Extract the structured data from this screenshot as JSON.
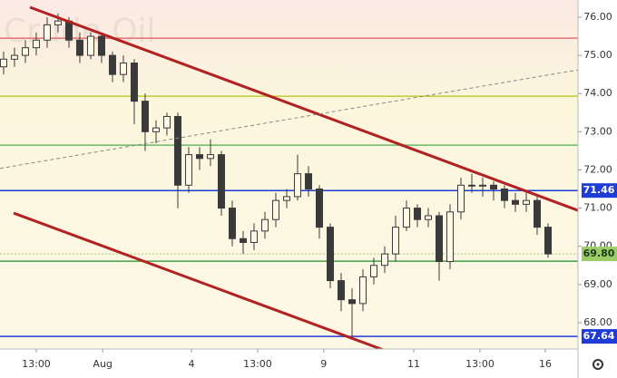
{
  "chart_data": {
    "type": "candlestick",
    "title": "Crude Oil",
    "x": [
      0,
      1,
      2,
      3,
      4,
      5,
      6,
      7,
      8,
      9,
      10,
      11,
      12,
      13,
      14,
      15,
      16,
      17,
      18,
      19,
      20,
      21,
      22,
      23,
      24,
      25,
      26,
      27,
      28,
      29,
      30,
      31,
      32,
      33,
      34,
      35,
      36,
      37,
      38,
      39,
      40,
      41,
      42,
      43,
      44,
      45,
      46,
      47,
      48,
      49,
      50
    ],
    "open": [
      74.7,
      74.9,
      75.0,
      75.2,
      75.4,
      75.8,
      75.9,
      75.4,
      75.0,
      75.5,
      75.0,
      74.5,
      74.8,
      73.8,
      73.0,
      73.1,
      73.4,
      71.6,
      72.4,
      72.3,
      72.4,
      71.0,
      70.2,
      70.1,
      70.4,
      70.7,
      71.2,
      71.3,
      71.9,
      71.5,
      70.5,
      69.1,
      68.6,
      68.5,
      69.2,
      69.5,
      69.8,
      70.5,
      71.0,
      70.7,
      70.8,
      69.6,
      70.9,
      71.6,
      71.6,
      71.6,
      71.5,
      71.2,
      71.1,
      71.2,
      70.5
    ],
    "high": [
      75.1,
      75.2,
      75.4,
      75.6,
      76.0,
      76.1,
      76.0,
      75.6,
      75.6,
      75.6,
      75.1,
      75.0,
      74.9,
      74.0,
      73.3,
      73.5,
      73.5,
      72.6,
      72.6,
      72.8,
      72.5,
      71.2,
      70.4,
      70.6,
      70.9,
      71.4,
      71.5,
      72.4,
      72.1,
      71.6,
      70.6,
      69.3,
      68.9,
      69.4,
      69.7,
      70.0,
      70.8,
      71.2,
      71.1,
      71.0,
      70.9,
      71.1,
      71.8,
      71.9,
      71.8,
      71.7,
      71.6,
      71.4,
      71.4,
      71.3,
      70.6
    ],
    "low": [
      74.5,
      74.7,
      74.8,
      75.0,
      75.2,
      75.6,
      75.2,
      74.8,
      74.9,
      74.8,
      74.3,
      74.3,
      73.2,
      72.5,
      72.7,
      72.9,
      71.0,
      71.4,
      72.0,
      72.1,
      70.8,
      70.0,
      69.8,
      69.9,
      70.2,
      70.5,
      71.0,
      71.2,
      71.3,
      70.2,
      68.9,
      68.3,
      67.64,
      68.3,
      69.0,
      69.3,
      69.6,
      70.4,
      70.5,
      70.5,
      69.1,
      69.4,
      70.7,
      71.4,
      71.3,
      71.2,
      71.0,
      70.9,
      70.9,
      70.3,
      69.7
    ],
    "close": [
      74.9,
      75.0,
      75.2,
      75.4,
      75.8,
      75.9,
      75.4,
      75.0,
      75.5,
      75.0,
      74.5,
      74.8,
      73.8,
      73.0,
      73.1,
      73.4,
      71.6,
      72.4,
      72.3,
      72.4,
      71.0,
      70.2,
      70.1,
      70.4,
      70.7,
      71.2,
      71.3,
      71.9,
      71.5,
      70.5,
      69.1,
      68.6,
      68.5,
      69.2,
      69.5,
      69.8,
      70.5,
      71.0,
      70.7,
      70.8,
      69.6,
      70.9,
      71.6,
      71.6,
      71.6,
      71.5,
      71.2,
      71.1,
      71.2,
      70.5,
      69.8
    ],
    "color": "#3a3a3a",
    "xlim": [
      -0.33,
      52.75
    ],
    "ylim": [
      67.31,
      76.45
    ],
    "xticks": [
      {
        "value": 3,
        "label": "13:00"
      },
      {
        "value": 9.1,
        "label": "Aug"
      },
      {
        "value": 17.25,
        "label": "4"
      },
      {
        "value": 23.33,
        "label": "13:00"
      },
      {
        "value": 29.4,
        "label": "9"
      },
      {
        "value": 37.67,
        "label": "11"
      },
      {
        "value": 43.75,
        "label": "13:00"
      },
      {
        "value": 49.75,
        "label": "16"
      }
    ],
    "yticks": [
      {
        "value": 68,
        "label": "68.00"
      },
      {
        "value": 69,
        "label": "69.00"
      },
      {
        "value": 70,
        "label": "70.00"
      },
      {
        "value": 71,
        "label": "71.00"
      },
      {
        "value": 72,
        "label": "72.00"
      },
      {
        "value": 73,
        "label": "73.00"
      },
      {
        "value": 74,
        "label": "74.00"
      },
      {
        "value": 75,
        "label": "75.00"
      },
      {
        "value": 76,
        "label": "76.00"
      }
    ],
    "levels": [
      {
        "value": 75.45,
        "color": "#e57373"
      },
      {
        "value": 73.93,
        "color": "#c0ca33"
      },
      {
        "value": 72.65,
        "color": "#66bb6a"
      },
      {
        "value": 71.46,
        "color": "#1e3cd6",
        "tagged": true
      },
      {
        "value": 69.8,
        "label": "69.80",
        "color": "#9ccc65",
        "dotted": true,
        "tagged": true
      },
      {
        "value": 69.61,
        "color": "#43a047"
      },
      {
        "value": 67.64,
        "color": "#1e3cd6",
        "tagged": true
      }
    ],
    "trendlines": [
      {
        "x": [
          2.42,
          52.75
        ],
        "y": [
          76.26,
          70.94
        ],
        "color": "#b22222",
        "dashed": false
      },
      {
        "x": [
          0.92,
          35.5
        ],
        "y": [
          70.87,
          67.22
        ],
        "color": "#b22222",
        "dashed": false
      },
      {
        "x": [
          -0.33,
          52.75
        ],
        "y": [
          72.04,
          74.62
        ],
        "color": "#888888",
        "dashed": true
      }
    ]
  }
}
